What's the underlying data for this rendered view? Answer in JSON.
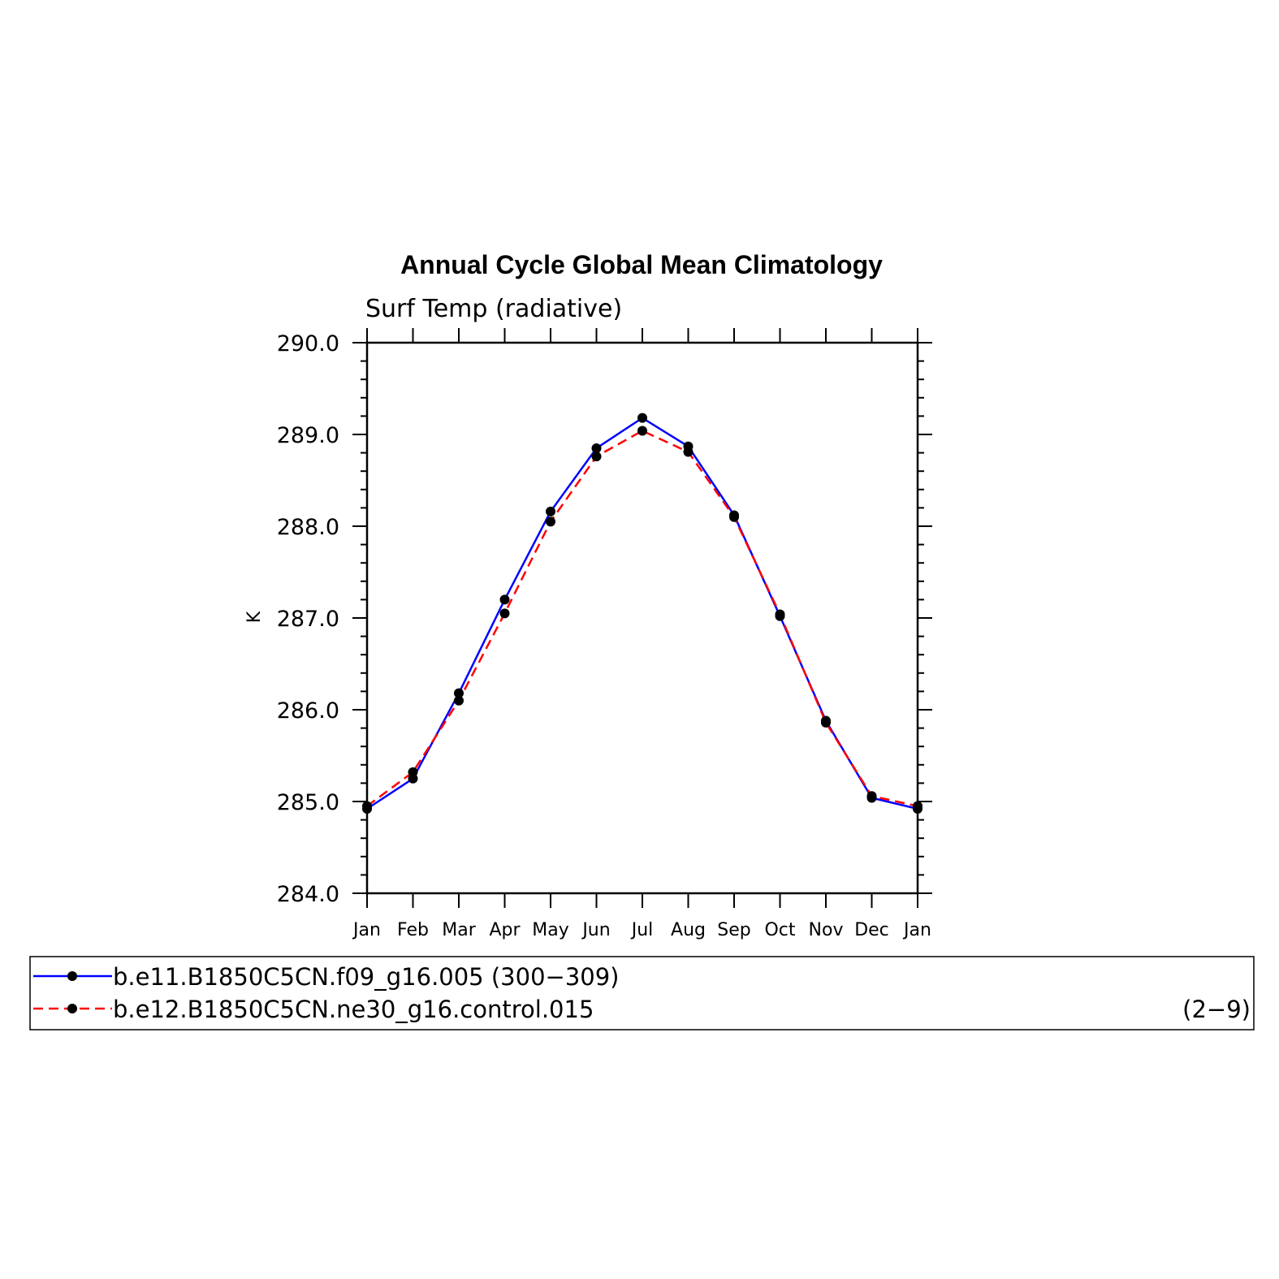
{
  "chart_data": {
    "type": "line",
    "title": "Annual Cycle Global Mean Climatology",
    "subtitle": "Surf Temp (radiative)",
    "xlabel": "",
    "ylabel": "K",
    "ylim": [
      284.0,
      290.0
    ],
    "yticks": [
      "284.0",
      "285.0",
      "286.0",
      "287.0",
      "288.0",
      "289.0",
      "290.0"
    ],
    "categories": [
      "Jan",
      "Feb",
      "Mar",
      "Apr",
      "May",
      "Jun",
      "Jul",
      "Aug",
      "Sep",
      "Oct",
      "Nov",
      "Dec",
      "Jan"
    ],
    "series": [
      {
        "name": "b.e11.B1850C5CN.f09_g16.005 (300−309)",
        "color": "#0000ff",
        "dash": "solid",
        "marker": "filled-circle",
        "values": [
          284.92,
          285.25,
          286.18,
          287.2,
          288.16,
          288.85,
          289.18,
          288.87,
          288.12,
          287.02,
          285.88,
          285.04,
          284.92
        ]
      },
      {
        "name": "b.e12.B1850C5CN.ne30_g16.control.015",
        "extra_label": "(2−9)",
        "color": "#ff0000",
        "dash": "dashed",
        "marker": "filled-circle",
        "values": [
          284.95,
          285.32,
          286.1,
          287.05,
          288.05,
          288.76,
          289.04,
          288.81,
          288.1,
          287.04,
          285.86,
          285.06,
          284.95
        ]
      }
    ],
    "grid": false,
    "legend_position": "bottom"
  }
}
